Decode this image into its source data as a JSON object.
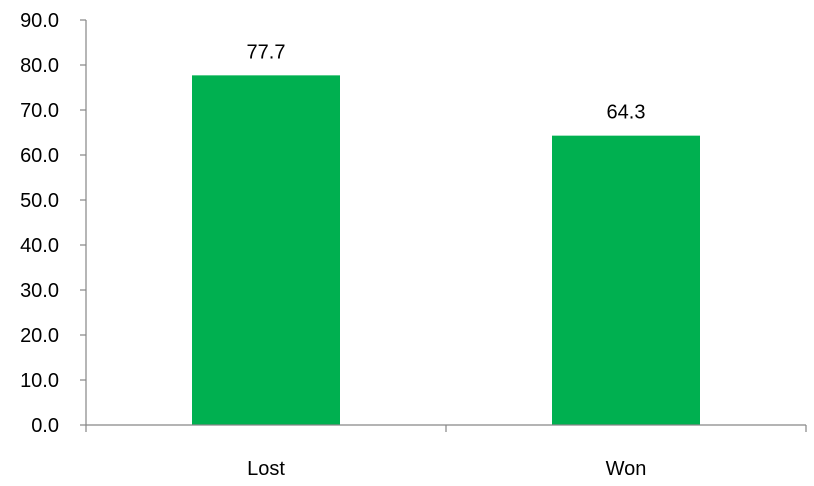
{
  "chart_data": {
    "type": "bar",
    "title": "",
    "xlabel": "",
    "ylabel": "",
    "categories": [
      "Lost",
      "Won"
    ],
    "values": [
      77.7,
      64.3
    ],
    "value_labels": [
      "77.7",
      "64.3"
    ],
    "ylim": [
      0,
      90
    ],
    "yticks": [
      0,
      10,
      20,
      30,
      40,
      50,
      60,
      70,
      80,
      90
    ],
    "ytick_labels": [
      "0.0",
      "10.0",
      "20.0",
      "30.0",
      "40.0",
      "50.0",
      "60.0",
      "70.0",
      "80.0",
      "90.0"
    ],
    "grid": false,
    "legend": "none",
    "bar_color": "#00B050"
  }
}
